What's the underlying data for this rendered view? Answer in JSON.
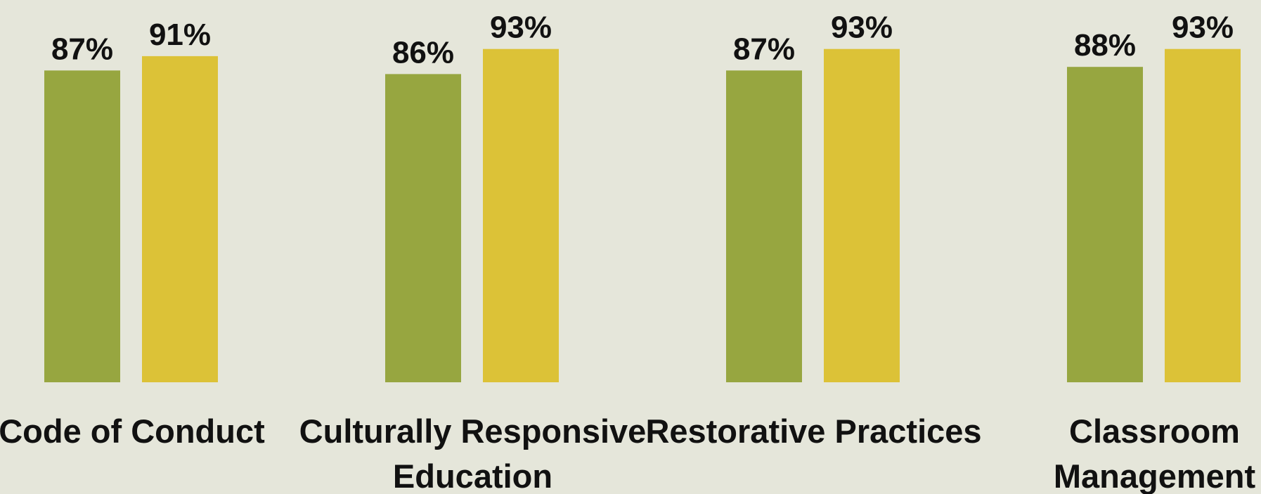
{
  "chart_data": {
    "type": "bar",
    "categories": [
      [
        "Code of Conduct"
      ],
      [
        "Culturally Responsive",
        "Education"
      ],
      [
        "Restorative Practices"
      ],
      [
        "Classroom",
        "Management"
      ]
    ],
    "series": [
      {
        "values": [
          87,
          86,
          87,
          88
        ],
        "labels": [
          "87%",
          "86%",
          "87%",
          "88%"
        ]
      },
      {
        "values": [
          91,
          93,
          93,
          93
        ],
        "labels": [
          "91%",
          "93%",
          "93%",
          "93%"
        ]
      }
    ],
    "ylim": [
      0,
      100
    ],
    "grid": false,
    "legend": "none"
  },
  "colors": {
    "background": "#e5e6da",
    "series": [
      "#97a640",
      "#dcc237"
    ],
    "text": "#111111"
  }
}
